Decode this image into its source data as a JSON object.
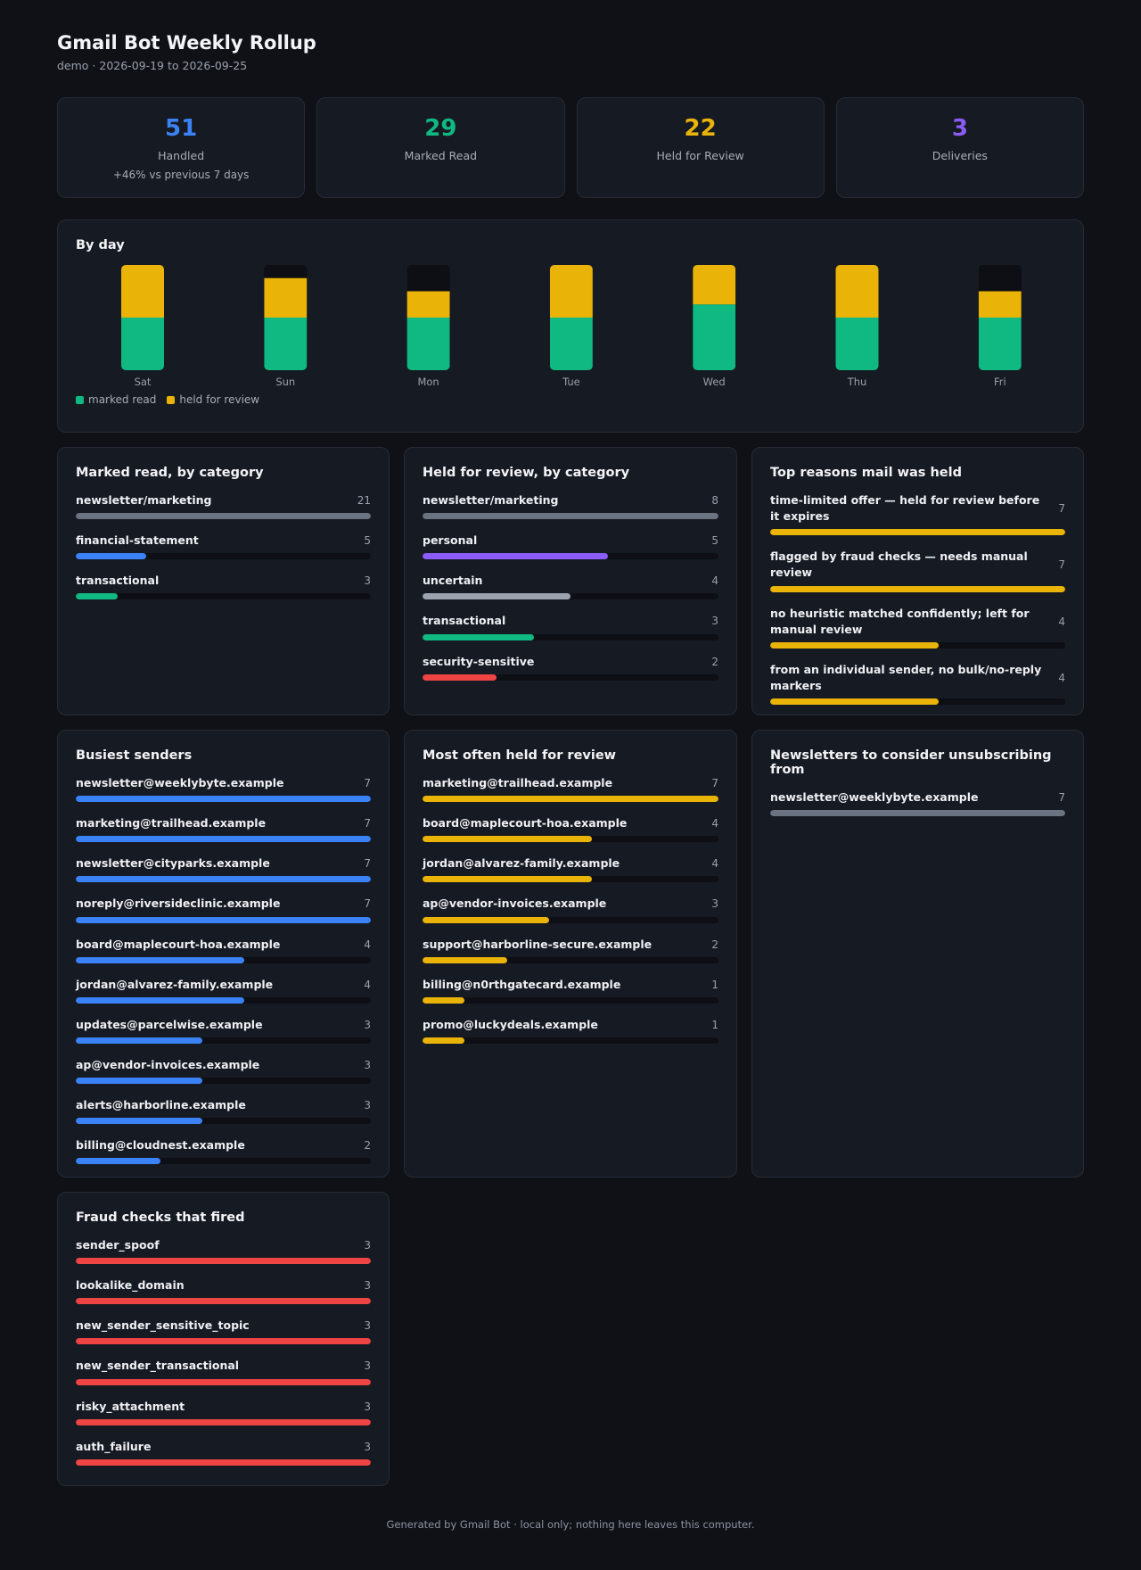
{
  "header": {
    "title": "Gmail Bot Weekly Rollup",
    "subtitle": "demo · 2026-09-19 to 2026-09-25"
  },
  "stats": [
    {
      "value": "51",
      "label": "Handled",
      "delta": "+46% vs previous 7 days",
      "color": "#3b82f6"
    },
    {
      "value": "29",
      "label": "Marked Read",
      "delta": "",
      "color": "#10b981"
    },
    {
      "value": "22",
      "label": "Held for Review",
      "delta": "",
      "color": "#eab308"
    },
    {
      "value": "3",
      "label": "Deliveries",
      "delta": "",
      "color": "#8b5cf6"
    }
  ],
  "by_day": {
    "title": "By day",
    "legend": [
      {
        "label": "marked read",
        "color": "#10b981"
      },
      {
        "label": "held for review",
        "color": "#eab308"
      }
    ]
  },
  "chart_data": {
    "type": "bar",
    "stacked": true,
    "categories": [
      "Sat",
      "Sun",
      "Mon",
      "Tue",
      "Wed",
      "Thu",
      "Fri"
    ],
    "ylim": [
      0,
      8
    ],
    "series": [
      {
        "name": "marked read",
        "values": [
          4,
          4,
          4,
          4,
          5,
          4,
          4
        ],
        "color": "#10b981"
      },
      {
        "name": "held for review",
        "values": [
          4,
          3,
          2,
          4,
          3,
          4,
          2
        ],
        "color": "#eab308"
      }
    ]
  },
  "cards": {
    "marked_read": {
      "title": "Marked read, by category",
      "max": 21,
      "items": [
        {
          "label": "newsletter/marketing",
          "count": 21,
          "color": "#6b7280"
        },
        {
          "label": "financial-statement",
          "count": 5,
          "color": "#3b82f6"
        },
        {
          "label": "transactional",
          "count": 3,
          "color": "#10b981"
        }
      ]
    },
    "held_category": {
      "title": "Held for review, by category",
      "max": 8,
      "items": [
        {
          "label": "newsletter/marketing",
          "count": 8,
          "color": "#6b7280"
        },
        {
          "label": "personal",
          "count": 5,
          "color": "#8b5cf6"
        },
        {
          "label": "uncertain",
          "count": 4,
          "color": "#9ca3af"
        },
        {
          "label": "transactional",
          "count": 3,
          "color": "#10b981"
        },
        {
          "label": "security-sensitive",
          "count": 2,
          "color": "#ef4444"
        }
      ]
    },
    "top_reasons": {
      "title": "Top reasons mail was held",
      "max": 7,
      "items": [
        {
          "label": "time-limited offer — held for review before it expires",
          "count": 7,
          "color": "#eab308"
        },
        {
          "label": "flagged by fraud checks — needs manual review",
          "count": 7,
          "color": "#eab308"
        },
        {
          "label": "no heuristic matched confidently; left for manual review",
          "count": 4,
          "color": "#eab308"
        },
        {
          "label": "from an individual sender, no bulk/no-reply markers",
          "count": 4,
          "color": "#eab308"
        }
      ]
    },
    "busiest": {
      "title": "Busiest senders",
      "max": 7,
      "items": [
        {
          "label": "newsletter@weeklybyte.example",
          "count": 7,
          "color": "#3b82f6"
        },
        {
          "label": "marketing@trailhead.example",
          "count": 7,
          "color": "#3b82f6"
        },
        {
          "label": "newsletter@cityparks.example",
          "count": 7,
          "color": "#3b82f6"
        },
        {
          "label": "noreply@riversideclinic.example",
          "count": 7,
          "color": "#3b82f6"
        },
        {
          "label": "board@maplecourt-hoa.example",
          "count": 4,
          "color": "#3b82f6"
        },
        {
          "label": "jordan@alvarez-family.example",
          "count": 4,
          "color": "#3b82f6"
        },
        {
          "label": "updates@parcelwise.example",
          "count": 3,
          "color": "#3b82f6"
        },
        {
          "label": "ap@vendor-invoices.example",
          "count": 3,
          "color": "#3b82f6"
        },
        {
          "label": "alerts@harborline.example",
          "count": 3,
          "color": "#3b82f6"
        },
        {
          "label": "billing@cloudnest.example",
          "count": 2,
          "color": "#3b82f6"
        }
      ]
    },
    "often_held": {
      "title": "Most often held for review",
      "max": 7,
      "items": [
        {
          "label": "marketing@trailhead.example",
          "count": 7,
          "color": "#eab308"
        },
        {
          "label": "board@maplecourt-hoa.example",
          "count": 4,
          "color": "#eab308"
        },
        {
          "label": "jordan@alvarez-family.example",
          "count": 4,
          "color": "#eab308"
        },
        {
          "label": "ap@vendor-invoices.example",
          "count": 3,
          "color": "#eab308"
        },
        {
          "label": "support@harborline-secure.example",
          "count": 2,
          "color": "#eab308"
        },
        {
          "label": "billing@n0rthgatecard.example",
          "count": 1,
          "color": "#eab308"
        },
        {
          "label": "promo@luckydeals.example",
          "count": 1,
          "color": "#eab308"
        }
      ]
    },
    "unsubscribe": {
      "title": "Newsletters to consider unsubscribing from",
      "max": 7,
      "items": [
        {
          "label": "newsletter@weeklybyte.example",
          "count": 7,
          "color": "#6b7280"
        }
      ]
    },
    "fraud": {
      "title": "Fraud checks that fired",
      "max": 3,
      "items": [
        {
          "label": "sender_spoof",
          "count": 3,
          "color": "#ef4444"
        },
        {
          "label": "lookalike_domain",
          "count": 3,
          "color": "#ef4444"
        },
        {
          "label": "new_sender_sensitive_topic",
          "count": 3,
          "color": "#ef4444"
        },
        {
          "label": "new_sender_transactional",
          "count": 3,
          "color": "#ef4444"
        },
        {
          "label": "risky_attachment",
          "count": 3,
          "color": "#ef4444"
        },
        {
          "label": "auth_failure",
          "count": 3,
          "color": "#ef4444"
        }
      ]
    }
  },
  "footer": "Generated by Gmail Bot · local only; nothing here leaves this computer."
}
